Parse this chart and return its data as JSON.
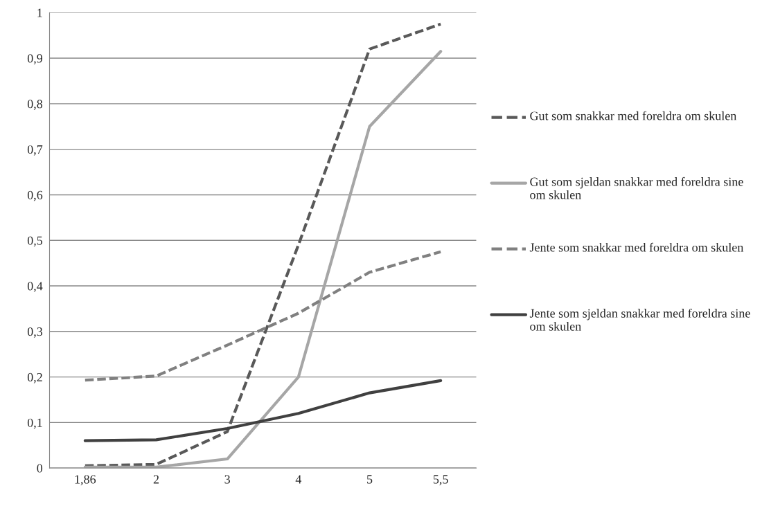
{
  "chart_data": {
    "type": "line",
    "categories": [
      "1,86",
      "2",
      "3",
      "4",
      "5",
      "5,5"
    ],
    "series": [
      {
        "name": "Gut som snakkar med foreldra om skulen",
        "color": "#595959",
        "line_style": "dashed",
        "values": [
          0.005,
          0.008,
          0.08,
          0.49,
          0.92,
          0.975
        ]
      },
      {
        "name": "Gut som sjeldan snakkar med foreldra sine om skulen",
        "color": "#a6a6a6",
        "line_style": "solid",
        "values": [
          0.002,
          0.002,
          0.02,
          0.2,
          0.75,
          0.915
        ]
      },
      {
        "name": "Jente som snakkar med foreldra om skulen",
        "color": "#808080",
        "line_style": "dashed",
        "values": [
          0.193,
          0.202,
          0.27,
          0.34,
          0.43,
          0.475
        ]
      },
      {
        "name": "Jente som sjeldan snakkar med foreldra sine om skulen",
        "color": "#404040",
        "line_style": "solid",
        "values": [
          0.06,
          0.062,
          0.087,
          0.12,
          0.165,
          0.192
        ]
      }
    ],
    "ylim": [
      0,
      1
    ],
    "yticks": [
      0,
      {
        "value": 0.1,
        "label": "0,1"
      },
      {
        "value": 0.2,
        "label": "0,2"
      },
      {
        "value": 0.3,
        "label": "0,3"
      },
      {
        "value": 0.4,
        "label": "0,4"
      },
      {
        "value": 0.5,
        "label": "0,5"
      },
      {
        "value": 0.6,
        "label": "0,6"
      },
      {
        "value": 0.7,
        "label": "0,7"
      },
      {
        "value": 0.8,
        "label": "0,8"
      },
      {
        "value": 0.9,
        "label": "0,9"
      },
      1
    ],
    "grid": "y",
    "legend": "right"
  }
}
